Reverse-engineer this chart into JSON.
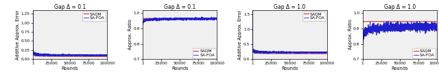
{
  "title1": "Gap Δ = 0.1",
  "title2": "Gap Δ = 0.1",
  "title3": "Gap Δ = 1.0",
  "title4": "Gap Δ = 1.0",
  "xlabel": "Rounds",
  "ylabel_left": "Additive Approx. Error",
  "ylabel_right": "Approx. Ratio",
  "legend_labels": [
    "SAQM",
    "SA-FOA"
  ],
  "saqm_color": "#d62728",
  "safoa_color": "#1f1fcc",
  "plot1_ylim": [
    0.0,
    1.35
  ],
  "plot2_ylim": [
    0.7,
    1.02
  ],
  "plot3_ylim": [
    0.0,
    1.65
  ],
  "plot4_ylim": [
    0.7,
    1.02
  ],
  "plot1_yticks": [
    0.0,
    0.25,
    0.5,
    0.75,
    1.0,
    1.25
  ],
  "plot2_yticks": [
    0.7,
    0.8,
    0.9,
    1.0
  ],
  "plot3_yticks": [
    0.0,
    0.5,
    1.0,
    1.5
  ],
  "plot4_yticks": [
    0.7,
    0.8,
    0.9,
    1.0
  ],
  "x_ticks": [
    1,
    25000,
    50000,
    75000,
    100000
  ],
  "x_tick_labels": [
    "1",
    "25000",
    "50000",
    "75000",
    "100000"
  ]
}
